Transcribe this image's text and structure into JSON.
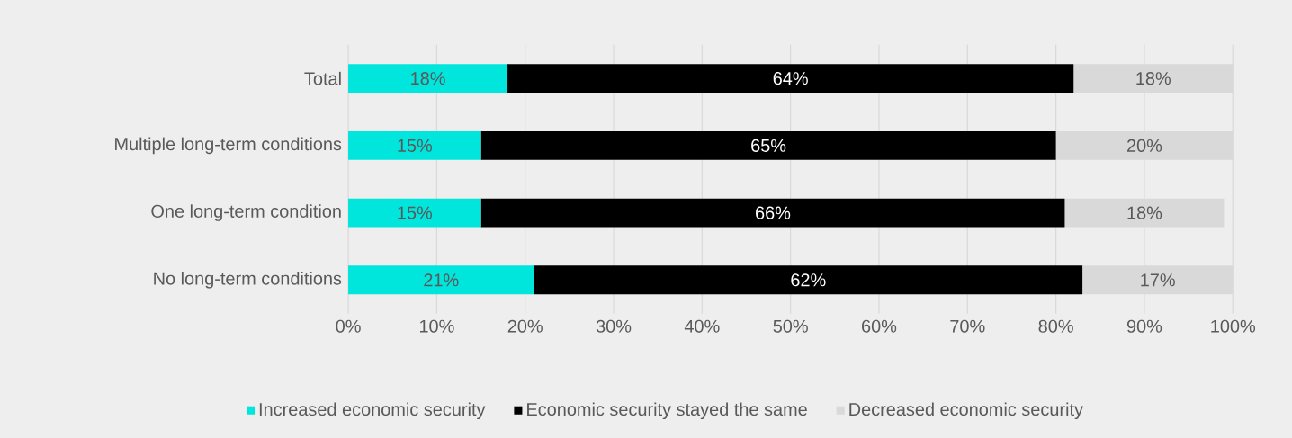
{
  "chart_data": {
    "type": "bar",
    "orientation": "horizontal",
    "stacked": true,
    "categories": [
      "Total",
      "Multiple long-term conditions",
      "One long-term condition",
      "No long-term conditions"
    ],
    "series": [
      {
        "name": "Increased economic security",
        "color": "#00e5dc",
        "values": [
          18,
          15,
          15,
          21
        ],
        "value_labels": [
          "18%",
          "15%",
          "15%",
          "21%"
        ]
      },
      {
        "name": "Economic security stayed the same",
        "color": "#000000",
        "values": [
          64,
          65,
          66,
          62
        ],
        "value_labels": [
          "64%",
          "65%",
          "66%",
          "62%"
        ]
      },
      {
        "name": "Decreased economic security",
        "color": "#d9d9d9",
        "values": [
          18,
          20,
          18,
          17
        ],
        "value_labels": [
          "18%",
          "20%",
          "18%",
          "17%"
        ]
      }
    ],
    "xlim": [
      0,
      100
    ],
    "xticks": [
      {
        "value": 0,
        "label": "0%"
      },
      {
        "value": 10,
        "label": "10%"
      },
      {
        "value": 20,
        "label": "20%"
      },
      {
        "value": 30,
        "label": "30%"
      },
      {
        "value": 40,
        "label": "40%"
      },
      {
        "value": 50,
        "label": "50%"
      },
      {
        "value": 60,
        "label": "60%"
      },
      {
        "value": 70,
        "label": "70%"
      },
      {
        "value": 80,
        "label": "80%"
      },
      {
        "value": 90,
        "label": "90%"
      },
      {
        "value": 100,
        "label": "100%"
      }
    ],
    "grid": "x",
    "legend": "bottom"
  }
}
